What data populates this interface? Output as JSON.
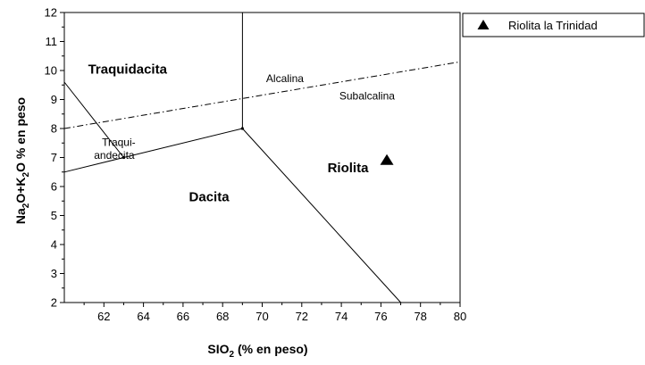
{
  "chart_data": {
    "type": "scatter",
    "title": "",
    "x_axis": {
      "label_main": "SIO",
      "label_sub": "2",
      "label_rest": " (% en peso)",
      "range": [
        60,
        80
      ],
      "ticks": [
        62,
        64,
        66,
        68,
        70,
        72,
        74,
        76,
        78,
        80
      ]
    },
    "y_axis": {
      "label_parts": [
        {
          "text": "Na",
          "sub": false
        },
        {
          "text": "2",
          "sub": true
        },
        {
          "text": "O+K",
          "sub": false
        },
        {
          "text": "2",
          "sub": true
        },
        {
          "text": "O % en peso",
          "sub": false
        }
      ],
      "range": [
        2,
        12
      ],
      "ticks": [
        2,
        3,
        4,
        5,
        6,
        7,
        8,
        9,
        10,
        11,
        12
      ]
    },
    "grid": false,
    "legend": {
      "position": "outside-right-top",
      "entries": [
        {
          "label": "Riolita la Trinidad",
          "marker": "triangle"
        }
      ]
    },
    "series": [
      {
        "name": "Riolita la Trinidad",
        "marker": "triangle",
        "color": "#000000",
        "points": [
          {
            "x": 76.3,
            "y": 6.9
          }
        ]
      }
    ],
    "boundaries": [
      {
        "style": "solid",
        "points": [
          [
            60,
            9.6
          ],
          [
            63,
            7.0
          ]
        ]
      },
      {
        "style": "solid",
        "points": [
          [
            60,
            6.5
          ],
          [
            63,
            7.0
          ],
          [
            69,
            8.0
          ]
        ]
      },
      {
        "style": "solid",
        "points": [
          [
            69,
            8.0
          ],
          [
            69,
            12
          ]
        ]
      },
      {
        "style": "solid",
        "points": [
          [
            69,
            8.0
          ],
          [
            77,
            2
          ]
        ]
      },
      {
        "style": "dashdot",
        "points": [
          [
            60,
            8.0
          ],
          [
            80,
            10.3
          ]
        ]
      }
    ],
    "vertices": [
      [
        63,
        7.0
      ],
      [
        69,
        8.0
      ]
    ],
    "region_labels": [
      {
        "text": "Traquidacita",
        "x": 61.2,
        "y": 9.9,
        "style": "bold"
      },
      {
        "text": "Dacita",
        "x": 66.3,
        "y": 5.5,
        "style": "bold"
      },
      {
        "text": "Riolita",
        "x": 73.3,
        "y": 6.5,
        "style": "bold"
      },
      {
        "text": "Alcalina",
        "x": 70.2,
        "y": 9.6,
        "style": "small"
      },
      {
        "text": "Subalcalina",
        "x": 73.9,
        "y": 9.0,
        "style": "small"
      },
      {
        "text": "Traqui-",
        "x": 61.9,
        "y": 7.4,
        "style": "small"
      },
      {
        "text": "andecita",
        "x": 61.5,
        "y": 6.95,
        "style": "small"
      }
    ]
  }
}
